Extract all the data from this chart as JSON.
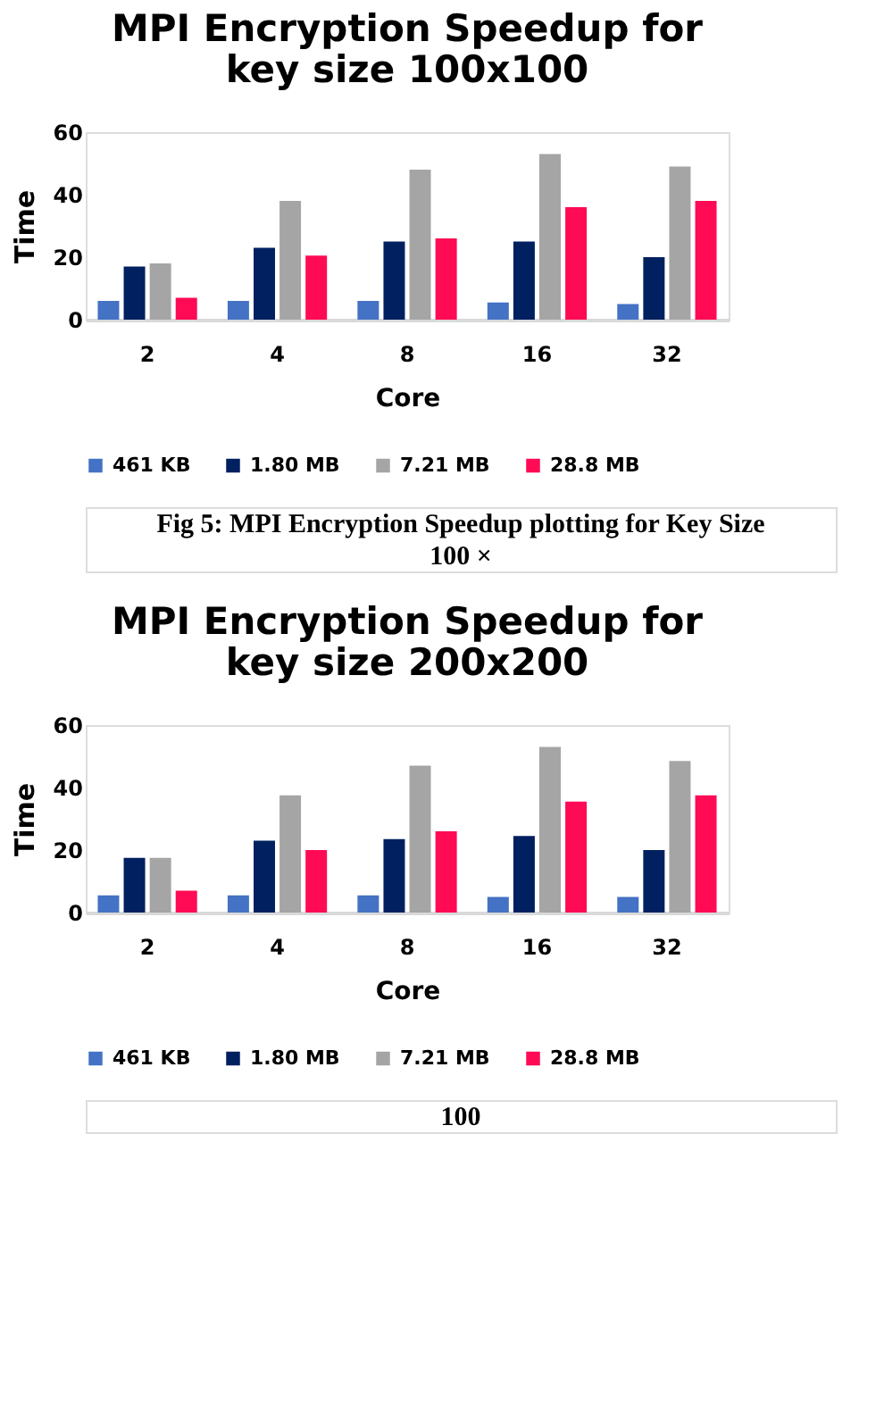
{
  "chart_data": [
    {
      "type": "bar",
      "title": [
        "MPI Encryption Speedup for",
        "key size 100x100"
      ],
      "xlabel": "Core",
      "ylabel": "Time",
      "categories": [
        "2",
        "4",
        "8",
        "16",
        "32"
      ],
      "ylim": [
        0,
        60
      ],
      "yticks": [
        0,
        20,
        40,
        60
      ],
      "grid": false,
      "legend": "bottom",
      "series": [
        {
          "name": "461 KB",
          "color": "#4472c4",
          "values": [
            6,
            6,
            6,
            5.5,
            5
          ]
        },
        {
          "name": "1.80 MB",
          "color": "#002060",
          "values": [
            17,
            23,
            25,
            25,
            20
          ]
        },
        {
          "name": "7.21 MB",
          "color": "#a5a5a5",
          "values": [
            18,
            38,
            48,
            53,
            49
          ]
        },
        {
          "name": "28.8 MB",
          "color": "#ff0a54",
          "values": [
            7,
            20.5,
            26,
            36,
            38
          ]
        }
      ],
      "annotations": [
        "Fig 5: MPI Encryption Speedup plotting for Key Size",
        "100 ×"
      ]
    },
    {
      "type": "bar",
      "title": [
        "MPI Encryption Speedup for",
        "key size 200x200"
      ],
      "xlabel": "Core",
      "ylabel": "Time",
      "categories": [
        "2",
        "4",
        "8",
        "16",
        "32"
      ],
      "ylim": [
        0,
        60
      ],
      "yticks": [
        0,
        20,
        40,
        60
      ],
      "grid": false,
      "legend": "bottom",
      "series": [
        {
          "name": "461 KB",
          "color": "#4472c4",
          "values": [
            5.5,
            5.5,
            5.5,
            5,
            5
          ]
        },
        {
          "name": "1.80 MB",
          "color": "#002060",
          "values": [
            17.5,
            23,
            23.5,
            24.5,
            20
          ]
        },
        {
          "name": "7.21 MB",
          "color": "#a5a5a5",
          "values": [
            17.5,
            37.5,
            47,
            53,
            48.5
          ]
        },
        {
          "name": "28.8 MB",
          "color": "#ff0a54",
          "values": [
            7,
            20,
            26,
            35.5,
            37.5
          ]
        }
      ],
      "annotations": [
        "100"
      ]
    }
  ]
}
